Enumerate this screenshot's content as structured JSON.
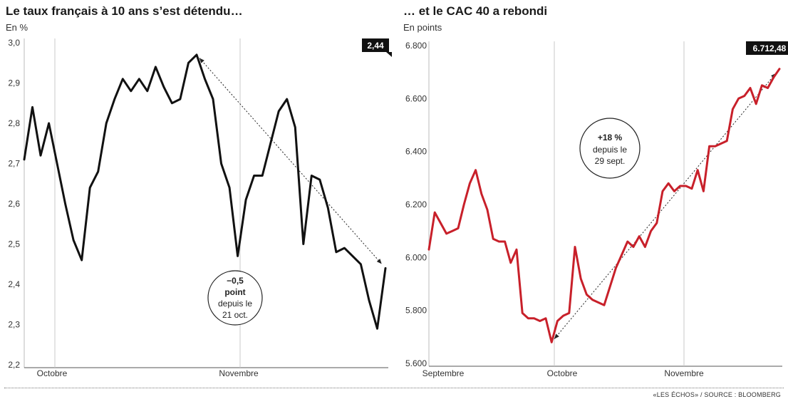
{
  "chart_data": [
    {
      "type": "line",
      "title": "Le taux français à 10 ans s’est détendu…",
      "subtitle": "En %",
      "ylim": [
        2.2,
        3.0
      ],
      "yticks": [
        "2,2",
        "2,3",
        "2,4",
        "2,5",
        "2,6",
        "2,7",
        "2,8",
        "2,9",
        "3,0"
      ],
      "xticks": [
        "Octobre",
        "Novembre"
      ],
      "color": "#111111",
      "end_label": "2,44",
      "annotation": {
        "value": "−0,5",
        "unit": "point",
        "line1": "depuis le",
        "line2": "21 oct."
      },
      "series": [
        {
          "values": [
            2.71,
            2.84,
            2.72,
            2.8,
            2.7,
            2.6,
            2.51,
            2.46,
            2.64,
            2.68,
            2.8,
            2.86,
            2.91,
            2.88,
            2.91,
            2.88,
            2.94,
            2.89,
            2.85,
            2.86,
            2.95,
            2.97,
            2.91,
            2.86,
            2.7,
            2.64,
            2.47,
            2.61,
            2.67,
            2.67,
            2.75,
            2.83,
            2.86,
            2.79,
            2.5,
            2.67,
            2.66,
            2.59,
            2.48,
            2.49,
            2.47,
            2.45,
            2.36,
            2.29,
            2.44
          ]
        }
      ]
    },
    {
      "type": "line",
      "title": "… et le CAC 40 a rebondi",
      "subtitle": "En points",
      "ylim": [
        5600,
        6800
      ],
      "yticks": [
        "5.600",
        "5.800",
        "6.000",
        "6.200",
        "6.400",
        "6.600",
        "6.800"
      ],
      "xticks": [
        "Septembre",
        "Octobre",
        "Novembre"
      ],
      "color": "#c8202a",
      "end_label": "6.712,48",
      "annotation": {
        "value": "+18 %",
        "line1": "depuis le",
        "line2": "29 sept."
      },
      "series": [
        {
          "values": [
            6030,
            6170,
            6130,
            6090,
            6100,
            6110,
            6200,
            6280,
            6330,
            6240,
            6180,
            6070,
            6060,
            6060,
            5980,
            6030,
            5790,
            5770,
            5770,
            5760,
            5770,
            5680,
            5760,
            5780,
            5790,
            6040,
            5920,
            5860,
            5840,
            5830,
            5820,
            5890,
            5960,
            6010,
            6060,
            6040,
            6080,
            6040,
            6100,
            6130,
            6250,
            6280,
            6250,
            6270,
            6270,
            6260,
            6330,
            6250,
            6420,
            6420,
            6430,
            6440,
            6560,
            6600,
            6610,
            6640,
            6580,
            6650,
            6640,
            6680,
            6712
          ]
        }
      ]
    }
  ],
  "source": "«LES ÉCHOS» / SOURCE : BLOOMBERG"
}
